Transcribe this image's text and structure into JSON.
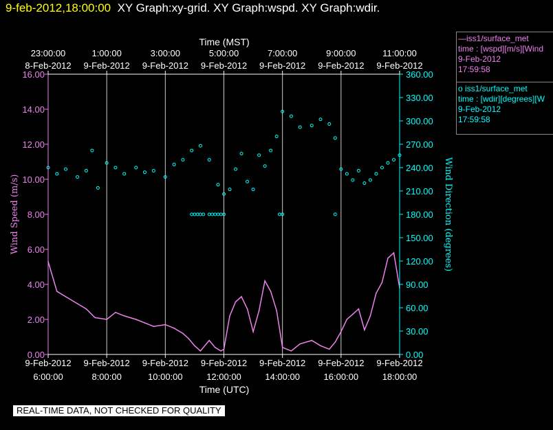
{
  "header": {
    "time": "9-feb-2012,18:00:00",
    "graphs": "XY Graph:xy-grid.  XY Graph:wspd.  XY Graph:wdir."
  },
  "legend": {
    "wspd": {
      "line1": "—iss1/surface_met",
      "line2": "time : [wspd][m/s][Wind",
      "line3": "9-Feb-2012",
      "line4": "17:59:58"
    },
    "wdir": {
      "line1": "o  iss1/surface_met",
      "line2": "time : [wdir][degrees][W",
      "line3": "9-Feb-2012",
      "line4": "17:59:58"
    }
  },
  "note": "REAL-TIME DATA, NOT CHECKED FOR QUALITY",
  "colors": {
    "wspd": "#ee82ee",
    "wdir": "#00ffff",
    "axis": "#ffffff",
    "time": "#ffff00"
  },
  "chart_data": {
    "type": "line",
    "xlabel_bottom": "Time (UTC)",
    "xlabel_top": "Time (MST)",
    "ylabel_left": "Wind Speed (m/s)",
    "ylabel_right": "Wind Direction (degrees)",
    "xlim_hours_utc": [
      6.0,
      18.0
    ],
    "ylim_left": [
      0,
      16
    ],
    "ylim_right": [
      0,
      360
    ],
    "bottom_ticks": [
      {
        "h": 6,
        "date": "9-Feb-2012",
        "time": "6:00:00"
      },
      {
        "h": 8,
        "date": "9-Feb-2012",
        "time": "8:00:00"
      },
      {
        "h": 10,
        "date": "9-Feb-2012",
        "time": "10:00:00"
      },
      {
        "h": 12,
        "date": "9-Feb-2012",
        "time": "12:00:00"
      },
      {
        "h": 14,
        "date": "9-Feb-2012",
        "time": "14:00:00"
      },
      {
        "h": 16,
        "date": "9-Feb-2012",
        "time": "16:00:00"
      },
      {
        "h": 18,
        "date": "9-Feb-2012",
        "time": "18:00:00"
      }
    ],
    "top_ticks": [
      {
        "h": 6,
        "time": "23:00:00",
        "date": "8-Feb-2012"
      },
      {
        "h": 8,
        "time": "1:00:00",
        "date": "9-Feb-2012"
      },
      {
        "h": 10,
        "time": "3:00:00",
        "date": "9-Feb-2012"
      },
      {
        "h": 12,
        "time": "5:00:00",
        "date": "9-Feb-2012"
      },
      {
        "h": 14,
        "time": "7:00:00",
        "date": "9-Feb-2012"
      },
      {
        "h": 16,
        "time": "9:00:00",
        "date": "9-Feb-2012"
      },
      {
        "h": 18,
        "time": "11:00:00",
        "date": "9-Feb-2012"
      }
    ],
    "left_ticks": [
      "0.00",
      "2.00",
      "4.00",
      "6.00",
      "8.00",
      "10.00",
      "12.00",
      "14.00",
      "16.00"
    ],
    "left_tick_values": [
      0,
      2,
      4,
      6,
      8,
      10,
      12,
      14,
      16
    ],
    "right_ticks": [
      "0.00",
      "30.00",
      "60.00",
      "90.00",
      "120.00",
      "150.00",
      "180.00",
      "210.00",
      "240.00",
      "270.00",
      "300.00",
      "330.00",
      "360.00"
    ],
    "right_tick_values": [
      0,
      30,
      60,
      90,
      120,
      150,
      180,
      210,
      240,
      270,
      300,
      330,
      360
    ],
    "grid_vertical": true,
    "series": [
      {
        "name": "wspd",
        "axis": "left",
        "style": "line",
        "x": [
          6.0,
          6.3,
          6.6,
          7.0,
          7.3,
          7.6,
          8.0,
          8.3,
          8.6,
          9.0,
          9.3,
          9.6,
          10.0,
          10.3,
          10.6,
          10.8,
          11.0,
          11.2,
          11.5,
          11.7,
          11.9,
          12.0,
          12.2,
          12.4,
          12.6,
          12.8,
          13.0,
          13.2,
          13.4,
          13.6,
          13.8,
          14.0,
          14.3,
          14.6,
          15.0,
          15.3,
          15.6,
          15.8,
          16.0,
          16.2,
          16.4,
          16.6,
          16.8,
          17.0,
          17.2,
          17.4,
          17.6,
          17.8,
          18.0
        ],
        "y": [
          5.3,
          3.6,
          3.3,
          2.9,
          2.6,
          2.1,
          2.0,
          2.4,
          2.2,
          2.0,
          1.8,
          1.6,
          1.7,
          1.5,
          1.2,
          0.9,
          0.5,
          0.2,
          0.8,
          0.4,
          0.2,
          0.3,
          2.2,
          3.0,
          3.3,
          2.6,
          1.3,
          2.5,
          4.2,
          3.6,
          2.5,
          0.4,
          0.2,
          0.6,
          0.8,
          0.5,
          0.3,
          0.7,
          1.3,
          2.0,
          2.3,
          2.6,
          1.4,
          2.2,
          3.5,
          4.1,
          5.5,
          5.8,
          3.8
        ]
      },
      {
        "name": "wdir",
        "axis": "right",
        "style": "scatter",
        "x": [
          6.0,
          6.3,
          6.6,
          7.0,
          7.3,
          7.5,
          7.7,
          8.0,
          8.3,
          8.6,
          9.0,
          9.3,
          9.6,
          10.0,
          10.3,
          10.6,
          10.9,
          11.2,
          11.5,
          11.8,
          12.0,
          12.2,
          12.4,
          12.6,
          12.8,
          13.0,
          13.2,
          13.4,
          13.6,
          13.8,
          14.0,
          14.3,
          14.6,
          15.0,
          15.3,
          15.6,
          15.8,
          16.0,
          16.2,
          16.4,
          16.6,
          16.8,
          17.0,
          17.2,
          17.4,
          17.6,
          17.8,
          18.0
        ],
        "y": [
          240,
          232,
          238,
          228,
          236,
          262,
          214,
          246,
          240,
          232,
          240,
          234,
          236,
          228,
          244,
          250,
          262,
          268,
          250,
          218,
          206,
          212,
          238,
          258,
          222,
          212,
          256,
          242,
          262,
          280,
          312,
          306,
          292,
          294,
          302,
          296,
          278,
          238,
          232,
          224,
          236,
          220,
          224,
          232,
          240,
          246,
          250,
          256
        ]
      },
      {
        "name": "wdir-steady",
        "axis": "right",
        "style": "scatter",
        "x": [
          10.9,
          11.0,
          11.1,
          11.2,
          11.3,
          11.5,
          11.6,
          11.7,
          11.8,
          11.9,
          12.0,
          13.9,
          14.0,
          15.8
        ],
        "y": [
          180,
          180,
          180,
          180,
          180,
          180,
          180,
          180,
          180,
          180,
          180,
          180,
          180,
          180
        ]
      }
    ]
  }
}
